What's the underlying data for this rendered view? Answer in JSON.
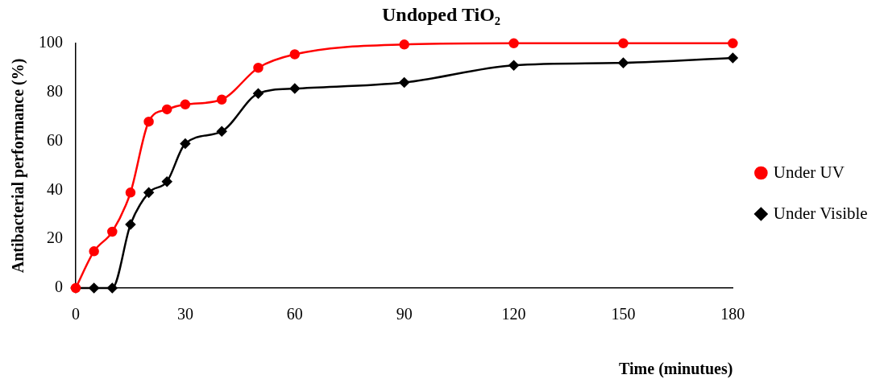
{
  "chart_data": {
    "type": "line",
    "title": "Undoped TiO₂",
    "xlabel": "Time (minutues)",
    "ylabel": "Antibacterial performance (%)",
    "x": [
      0,
      5,
      10,
      15,
      20,
      25,
      30,
      40,
      50,
      60,
      90,
      120,
      150,
      180
    ],
    "series": [
      {
        "name": "Under UV",
        "color": "#ff0000",
        "marker": "circle",
        "values": [
          0,
          15,
          23,
          39,
          68,
          73,
          75,
          77,
          90,
          95.5,
          99.5,
          100,
          100,
          100
        ]
      },
      {
        "name": "Under Visible",
        "color": "#000000",
        "marker": "diamond",
        "values": [
          0,
          0,
          0,
          26,
          39,
          43.5,
          59,
          64,
          79.5,
          81.5,
          84,
          91,
          92,
          94
        ]
      }
    ],
    "xlim": [
      0,
      180
    ],
    "xticks": [
      0,
      30,
      60,
      90,
      120,
      150,
      180
    ],
    "ylim": [
      0,
      100
    ],
    "yticks": [
      0,
      20,
      40,
      60,
      80,
      100
    ],
    "grid": false,
    "legend": "right",
    "line_style": "solid"
  }
}
